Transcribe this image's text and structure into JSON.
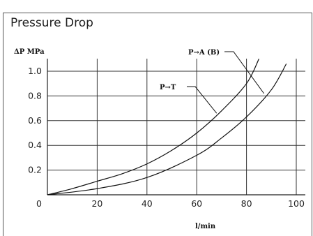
{
  "chart_data": {
    "type": "line",
    "title": "Pressure Drop",
    "ylabel": "ΔP MPa",
    "xlabel": "l/min",
    "xlim": [
      0,
      100
    ],
    "ylim": [
      0,
      1.1
    ],
    "x_ticks": [
      0,
      20,
      40,
      60,
      80,
      100
    ],
    "y_ticks": [
      0.2,
      0.4,
      0.6,
      0.8,
      1.0
    ],
    "x_tick_labels": [
      "0",
      "20",
      "40",
      "60",
      "80",
      "100"
    ],
    "y_tick_labels": [
      "0.2",
      "0.4",
      "0.6",
      "0.8",
      "1.0"
    ],
    "grid": true,
    "series": [
      {
        "name": "P→T",
        "x": [
          0,
          10,
          20,
          30,
          40,
          50,
          60,
          70,
          80,
          85
        ],
        "y": [
          0,
          0.05,
          0.11,
          0.17,
          0.25,
          0.36,
          0.5,
          0.68,
          0.9,
          1.1
        ],
        "label_anchor": [
          68,
          0.66
        ]
      },
      {
        "name": "P→A (B)",
        "x": [
          0,
          20,
          40,
          60,
          70,
          80,
          90,
          96
        ],
        "y": [
          0,
          0.05,
          0.14,
          0.32,
          0.46,
          0.63,
          0.85,
          1.06
        ],
        "label_anchor": [
          87,
          0.82
        ]
      }
    ]
  }
}
